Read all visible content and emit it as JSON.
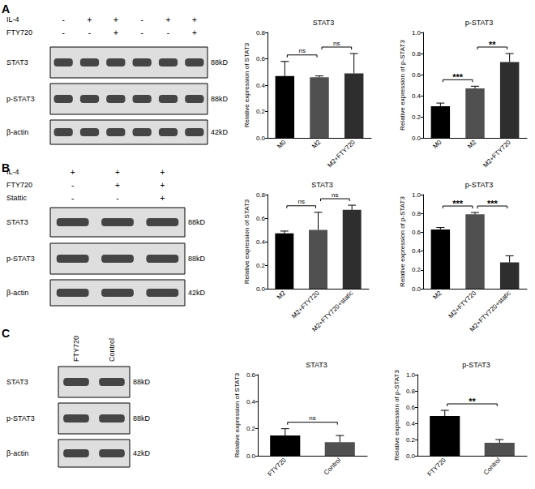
{
  "panels": [
    {
      "label": "A",
      "conditions": [
        {
          "name": "IL-4",
          "signs": [
            "-",
            "+",
            "+",
            "-",
            "+",
            "+"
          ]
        },
        {
          "name": "FTY720",
          "signs": [
            "-",
            "-",
            "+",
            "-",
            "-",
            "+"
          ]
        }
      ],
      "rows": [
        {
          "name": "STAT3",
          "size": "88kD"
        },
        {
          "name": "p-STAT3",
          "size": "88kD"
        },
        {
          "name": "β-actin",
          "size": "42kD"
        }
      ]
    },
    {
      "label": "B",
      "conditions": [
        {
          "name": "IL-4",
          "signs": [
            "+",
            "+",
            "+"
          ]
        },
        {
          "name": "FTY720",
          "signs": [
            "-",
            "+",
            "+"
          ]
        },
        {
          "name": "Stattic",
          "signs": [
            "-",
            "-",
            "+"
          ]
        }
      ],
      "rows": [
        {
          "name": "STAT3",
          "size": "88kD"
        },
        {
          "name": "p-STAT3",
          "size": "88kD"
        },
        {
          "name": "β-actin",
          "size": "42kD"
        }
      ]
    },
    {
      "label": "C",
      "lanes": [
        "FTY720",
        "Control"
      ],
      "rows": [
        {
          "name": "STAT3",
          "size": "88kD"
        },
        {
          "name": "p-STAT3",
          "size": "88kD"
        },
        {
          "name": "β-actin",
          "size": "42kD"
        }
      ]
    }
  ],
  "chart_data": [
    {
      "type": "bar",
      "title": "STAT3",
      "ylabel": "Relative expression of STAT3",
      "categories": [
        "M0",
        "M2",
        "M2+FTY720"
      ],
      "values": [
        0.47,
        0.46,
        0.49
      ],
      "errors": [
        0.11,
        0.01,
        0.15
      ],
      "colors": [
        "#000000",
        "#505050",
        "#2e2e2e"
      ],
      "ylim": [
        0,
        0.8
      ],
      "yticks": [
        {
          "value": 0,
          "label": "0.0"
        },
        0.2,
        0.4,
        0.6,
        0.8
      ],
      "comparisons": [
        {
          "pair": [
            "M0",
            "M2"
          ],
          "label": "ns"
        },
        {
          "pair": [
            "M2",
            "M2+FTY720"
          ],
          "label": "ns"
        }
      ]
    },
    {
      "type": "bar",
      "title": "p-STAT3",
      "ylabel": "Relative expression of p-STAT3",
      "categories": [
        "M0",
        "M2",
        "M2+FTY720"
      ],
      "values": [
        0.3,
        0.47,
        0.72
      ],
      "errors": [
        0.03,
        0.02,
        0.08
      ],
      "colors": [
        "#000000",
        "#505050",
        "#2e2e2e"
      ],
      "ylim": [
        0,
        1
      ],
      "yticks": [
        {
          "value": 0,
          "label": "0.0"
        },
        0.2,
        0.4,
        0.6,
        0.8,
        {
          "value": 1,
          "label": "1.0"
        }
      ],
      "comparisons": [
        {
          "pair": [
            "M0",
            "M2"
          ],
          "label": "***"
        },
        {
          "pair": [
            "M2",
            "M2+FTY720"
          ],
          "label": "**"
        }
      ]
    },
    {
      "type": "bar",
      "title": "STAT3",
      "ylabel": "Relative expression of STAT3",
      "categories": [
        "M2",
        "M2+FTY720",
        "M2+FTY720+static"
      ],
      "values": [
        0.47,
        0.5,
        0.67
      ],
      "errors": [
        0.02,
        0.15,
        0.04
      ],
      "colors": [
        "#000000",
        "#505050",
        "#2e2e2e"
      ],
      "ylim": [
        0,
        0.8
      ],
      "yticks": [
        {
          "value": 0,
          "label": "0.0"
        },
        0.2,
        0.4,
        0.6,
        0.8
      ],
      "comparisons": [
        {
          "pair": [
            "M2",
            "M2+FTY720"
          ],
          "label": "ns"
        },
        {
          "pair": [
            "M2+FTY720",
            "M2+FTY720+static"
          ],
          "label": "ns"
        }
      ]
    },
    {
      "type": "bar",
      "title": "p-STAT3",
      "ylabel": "Relative expression of p-STAT3",
      "categories": [
        "M2",
        "M2+FTY720",
        "M2+FTY720+static"
      ],
      "values": [
        0.63,
        0.79,
        0.28
      ],
      "errors": [
        0.02,
        0.02,
        0.07
      ],
      "colors": [
        "#000000",
        "#505050",
        "#2e2e2e"
      ],
      "ylim": [
        0,
        1
      ],
      "yticks": [
        {
          "value": 0,
          "label": "0.0"
        },
        0.2,
        0.4,
        0.6,
        0.8,
        {
          "value": 1,
          "label": "1.0"
        }
      ],
      "comparisons": [
        {
          "pair": [
            "M2",
            "M2+FTY720"
          ],
          "label": "***"
        },
        {
          "pair": [
            "M2+FTY720",
            "M2+FTY720+static"
          ],
          "label": "***"
        }
      ]
    },
    {
      "type": "bar",
      "title": "STAT3",
      "ylabel": "Relative expression of STAT3",
      "categories": [
        "FTY720",
        "Control"
      ],
      "values": [
        0.15,
        0.1
      ],
      "errors": [
        0.05,
        0.05
      ],
      "colors": [
        "#000000",
        "#505050"
      ],
      "ylim": [
        0,
        0.6
      ],
      "yticks": [
        {
          "value": 0,
          "label": "0.0"
        },
        0.2,
        0.4,
        0.6
      ],
      "comparisons": [
        {
          "pair": [
            "FTY720",
            "Control"
          ],
          "label": "ns"
        }
      ]
    },
    {
      "type": "bar",
      "title": "p-STAT3",
      "ylabel": "Relative expression of p-STAT3",
      "categories": [
        "FTY720",
        "Control"
      ],
      "values": [
        0.49,
        0.16
      ],
      "errors": [
        0.07,
        0.04
      ],
      "colors": [
        "#000000",
        "#505050"
      ],
      "ylim": [
        0,
        1
      ],
      "yticks": [
        {
          "value": 0,
          "label": "0.0"
        },
        0.2,
        0.4,
        0.6,
        0.8,
        {
          "value": 1,
          "label": "1.0"
        }
      ],
      "comparisons": [
        {
          "pair": [
            "FTY720",
            "Control"
          ],
          "label": "**"
        }
      ]
    }
  ]
}
